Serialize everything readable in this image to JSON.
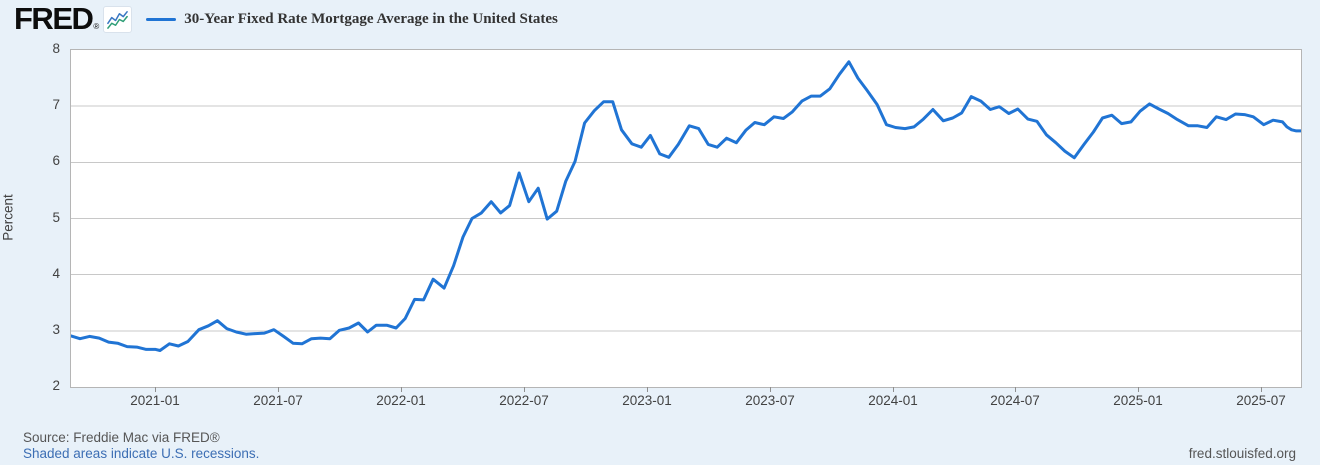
{
  "header": {
    "logo_text": "FRED",
    "registered": "®",
    "icon": "mini-line-chart-icon"
  },
  "footer": {
    "source": "Source: Freddie Mac via FRED®",
    "recession_note": "Shaded areas indicate U.S. recessions.",
    "site": "fred.stlouisfed.org"
  },
  "colors": {
    "background": "#e8f1f9",
    "plot_background": "#ffffff",
    "line": "#2074d4",
    "gridline": "#c8c8c8",
    "frame": "#b5b5b5",
    "axis_text": "#424242",
    "link": "#3c6eb4",
    "icon_blue": "#3a78c3",
    "icon_green": "#2f9e77"
  },
  "chart_data": {
    "type": "line",
    "title": "30-Year Fixed Rate Mortgage Average in the United States",
    "xlabel": "",
    "ylabel": "Percent",
    "ylim": [
      2,
      8
    ],
    "yticks": [
      2,
      3,
      4,
      5,
      6,
      7,
      8
    ],
    "xtick_labels": [
      "2021-01",
      "2021-07",
      "2022-01",
      "2022-07",
      "2023-01",
      "2023-07",
      "2024-01",
      "2024-07",
      "2025-01",
      "2025-07"
    ],
    "x_range": [
      "2020-08-27",
      "2025-08-28"
    ],
    "grid": "horizontal",
    "legend_position": "top-left",
    "line_color": "#2074d4",
    "points": [
      [
        "2020-08-27",
        2.91
      ],
      [
        "2020-09-10",
        2.86
      ],
      [
        "2020-09-24",
        2.9
      ],
      [
        "2020-10-08",
        2.87
      ],
      [
        "2020-10-22",
        2.8
      ],
      [
        "2020-11-05",
        2.78
      ],
      [
        "2020-11-19",
        2.72
      ],
      [
        "2020-12-03",
        2.71
      ],
      [
        "2020-12-17",
        2.67
      ],
      [
        "2020-12-31",
        2.67
      ],
      [
        "2021-01-07",
        2.65
      ],
      [
        "2021-01-21",
        2.77
      ],
      [
        "2021-02-04",
        2.73
      ],
      [
        "2021-02-18",
        2.81
      ],
      [
        "2021-03-04",
        3.02
      ],
      [
        "2021-03-18",
        3.09
      ],
      [
        "2021-04-01",
        3.18
      ],
      [
        "2021-04-15",
        3.04
      ],
      [
        "2021-04-29",
        2.98
      ],
      [
        "2021-05-13",
        2.94
      ],
      [
        "2021-05-27",
        2.95
      ],
      [
        "2021-06-10",
        2.96
      ],
      [
        "2021-06-24",
        3.02
      ],
      [
        "2021-07-08",
        2.9
      ],
      [
        "2021-07-22",
        2.78
      ],
      [
        "2021-08-05",
        2.77
      ],
      [
        "2021-08-19",
        2.86
      ],
      [
        "2021-09-02",
        2.87
      ],
      [
        "2021-09-16",
        2.86
      ],
      [
        "2021-09-30",
        3.01
      ],
      [
        "2021-10-14",
        3.05
      ],
      [
        "2021-10-28",
        3.14
      ],
      [
        "2021-11-11",
        2.98
      ],
      [
        "2021-11-24",
        3.1
      ],
      [
        "2021-12-09",
        3.1
      ],
      [
        "2021-12-23",
        3.05
      ],
      [
        "2022-01-06",
        3.22
      ],
      [
        "2022-01-20",
        3.56
      ],
      [
        "2022-02-03",
        3.55
      ],
      [
        "2022-02-17",
        3.92
      ],
      [
        "2022-03-03",
        3.76
      ],
      [
        "2022-03-17",
        4.16
      ],
      [
        "2022-03-31",
        4.67
      ],
      [
        "2022-04-14",
        5.0
      ],
      [
        "2022-04-28",
        5.1
      ],
      [
        "2022-05-12",
        5.3
      ],
      [
        "2022-05-26",
        5.1
      ],
      [
        "2022-06-09",
        5.23
      ],
      [
        "2022-06-23",
        5.81
      ],
      [
        "2022-07-07",
        5.3
      ],
      [
        "2022-07-21",
        5.54
      ],
      [
        "2022-08-04",
        4.99
      ],
      [
        "2022-08-18",
        5.13
      ],
      [
        "2022-09-01",
        5.66
      ],
      [
        "2022-09-15",
        6.02
      ],
      [
        "2022-09-29",
        6.7
      ],
      [
        "2022-10-13",
        6.92
      ],
      [
        "2022-10-27",
        7.08
      ],
      [
        "2022-11-10",
        7.08
      ],
      [
        "2022-11-23",
        6.58
      ],
      [
        "2022-12-08",
        6.33
      ],
      [
        "2022-12-22",
        6.27
      ],
      [
        "2023-01-05",
        6.48
      ],
      [
        "2023-01-19",
        6.15
      ],
      [
        "2023-02-02",
        6.09
      ],
      [
        "2023-02-16",
        6.32
      ],
      [
        "2023-03-02",
        6.65
      ],
      [
        "2023-03-16",
        6.6
      ],
      [
        "2023-03-30",
        6.32
      ],
      [
        "2023-04-13",
        6.27
      ],
      [
        "2023-04-27",
        6.43
      ],
      [
        "2023-05-11",
        6.35
      ],
      [
        "2023-05-25",
        6.57
      ],
      [
        "2023-06-08",
        6.71
      ],
      [
        "2023-06-22",
        6.67
      ],
      [
        "2023-07-06",
        6.81
      ],
      [
        "2023-07-20",
        6.78
      ],
      [
        "2023-08-03",
        6.9
      ],
      [
        "2023-08-17",
        7.09
      ],
      [
        "2023-08-31",
        7.18
      ],
      [
        "2023-09-14",
        7.18
      ],
      [
        "2023-09-28",
        7.31
      ],
      [
        "2023-10-12",
        7.57
      ],
      [
        "2023-10-26",
        7.79
      ],
      [
        "2023-11-09",
        7.5
      ],
      [
        "2023-11-22",
        7.29
      ],
      [
        "2023-12-07",
        7.03
      ],
      [
        "2023-12-21",
        6.67
      ],
      [
        "2024-01-04",
        6.62
      ],
      [
        "2024-01-18",
        6.6
      ],
      [
        "2024-02-01",
        6.63
      ],
      [
        "2024-02-15",
        6.77
      ],
      [
        "2024-02-29",
        6.94
      ],
      [
        "2024-03-14",
        6.74
      ],
      [
        "2024-03-28",
        6.79
      ],
      [
        "2024-04-11",
        6.88
      ],
      [
        "2024-04-25",
        7.17
      ],
      [
        "2024-05-09",
        7.09
      ],
      [
        "2024-05-23",
        6.94
      ],
      [
        "2024-06-06",
        6.99
      ],
      [
        "2024-06-20",
        6.87
      ],
      [
        "2024-07-03",
        6.95
      ],
      [
        "2024-07-18",
        6.77
      ],
      [
        "2024-08-01",
        6.73
      ],
      [
        "2024-08-15",
        6.49
      ],
      [
        "2024-08-29",
        6.35
      ],
      [
        "2024-09-12",
        6.2
      ],
      [
        "2024-09-26",
        6.08
      ],
      [
        "2024-10-10",
        6.32
      ],
      [
        "2024-10-24",
        6.54
      ],
      [
        "2024-11-07",
        6.79
      ],
      [
        "2024-11-21",
        6.84
      ],
      [
        "2024-12-05",
        6.69
      ],
      [
        "2024-12-19",
        6.72
      ],
      [
        "2025-01-02",
        6.91
      ],
      [
        "2025-01-16",
        7.04
      ],
      [
        "2025-01-30",
        6.95
      ],
      [
        "2025-02-13",
        6.87
      ],
      [
        "2025-02-27",
        6.76
      ],
      [
        "2025-03-13",
        6.65
      ],
      [
        "2025-03-27",
        6.65
      ],
      [
        "2025-04-10",
        6.62
      ],
      [
        "2025-04-24",
        6.81
      ],
      [
        "2025-05-08",
        6.76
      ],
      [
        "2025-05-22",
        6.86
      ],
      [
        "2025-06-05",
        6.85
      ],
      [
        "2025-06-18",
        6.81
      ],
      [
        "2025-07-03",
        6.67
      ],
      [
        "2025-07-17",
        6.75
      ],
      [
        "2025-07-31",
        6.72
      ],
      [
        "2025-08-07",
        6.63
      ],
      [
        "2025-08-14",
        6.58
      ],
      [
        "2025-08-21",
        6.56
      ],
      [
        "2025-08-28",
        6.56
      ]
    ]
  }
}
